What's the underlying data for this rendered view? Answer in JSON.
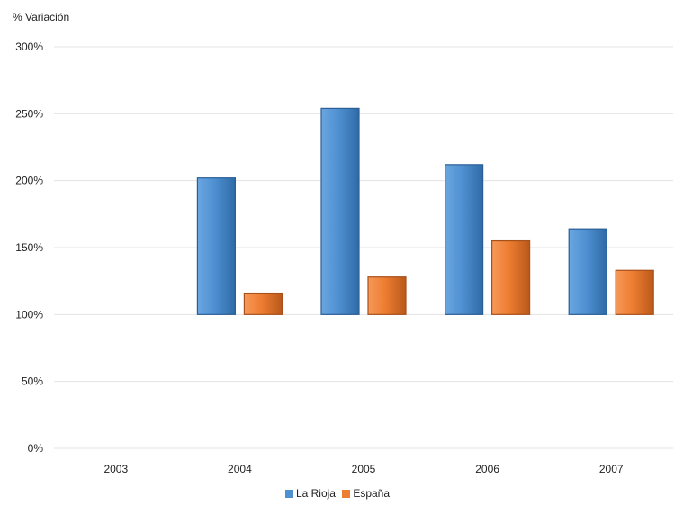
{
  "chart_data": {
    "type": "bar",
    "title": "",
    "ylabel": "% Variación",
    "xlabel": "",
    "categories": [
      "2003",
      "2004",
      "2005",
      "2006",
      "2007"
    ],
    "y_ticks": [
      "0%",
      "50%",
      "100%",
      "150%",
      "200%",
      "250%",
      "300%"
    ],
    "y_tick_values": [
      0,
      50,
      100,
      150,
      200,
      250,
      300
    ],
    "ylim": [
      0,
      300
    ],
    "baseline": 100,
    "grid": true,
    "legend_position": "bottom",
    "series": [
      {
        "name": "La Rioja",
        "color": "#4f90d2",
        "values": [
          null,
          202,
          254,
          212,
          164
        ]
      },
      {
        "name": "España",
        "color": "#ed7d31",
        "values": [
          null,
          116,
          128,
          155,
          133
        ]
      }
    ]
  }
}
